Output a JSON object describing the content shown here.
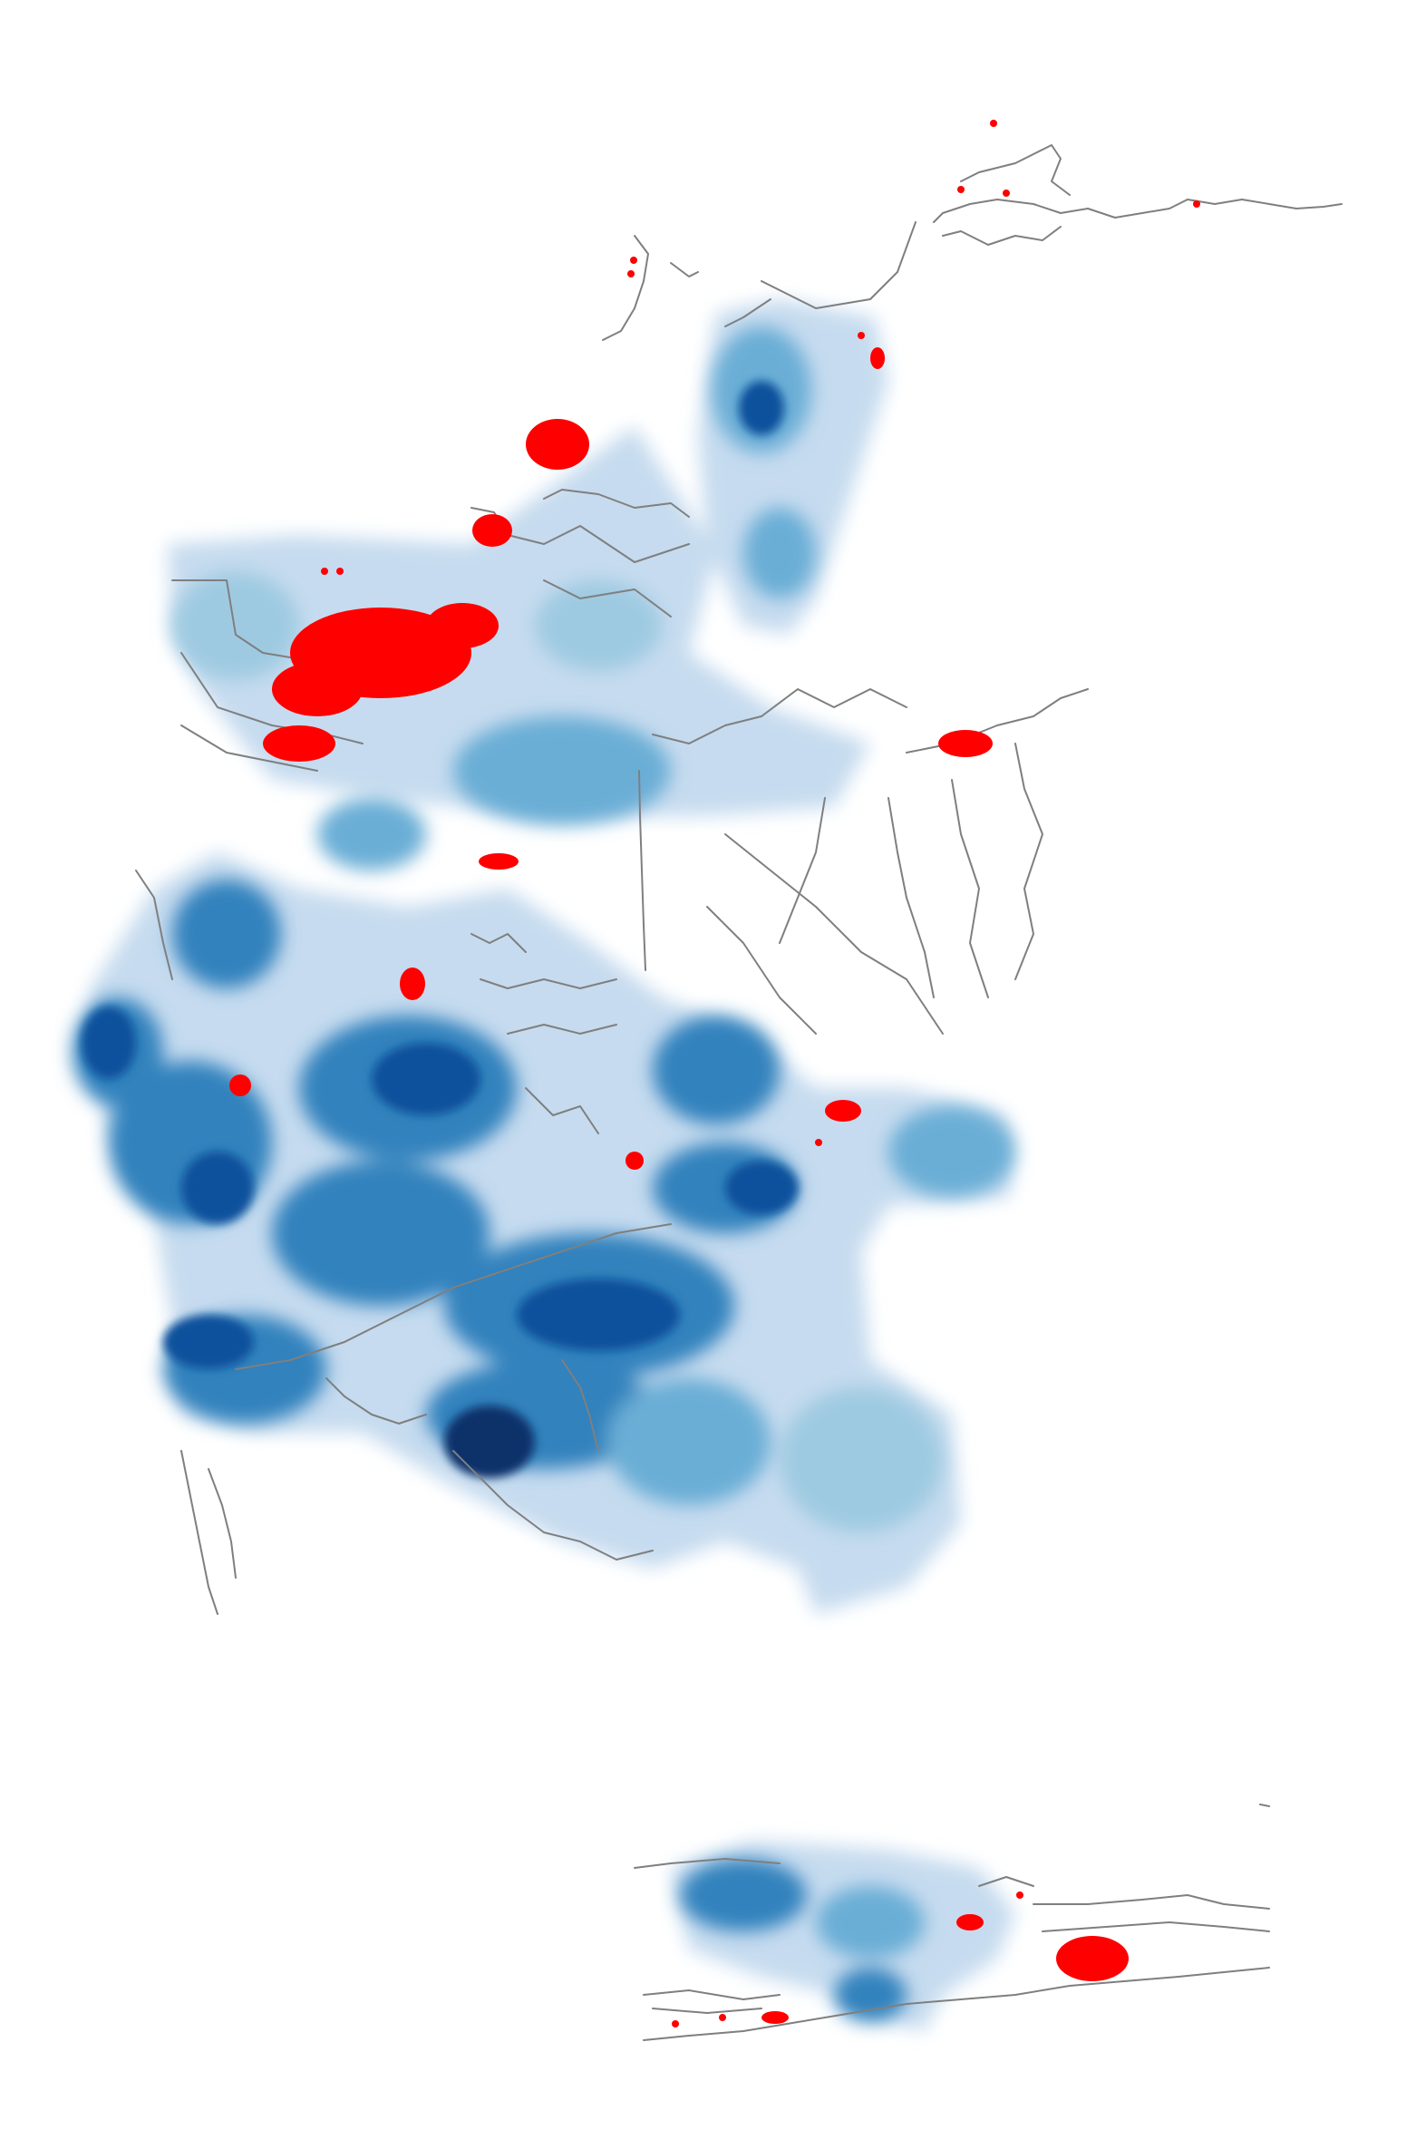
{
  "map": {
    "background_color": "#ffffff",
    "road_color": "#7f7f7f",
    "highlight_color": "#ff0000",
    "density_colors": [
      "#dbe9f6",
      "#9ecae1",
      "#6baed6",
      "#3182bd",
      "#08519c",
      "#08306b"
    ]
  }
}
